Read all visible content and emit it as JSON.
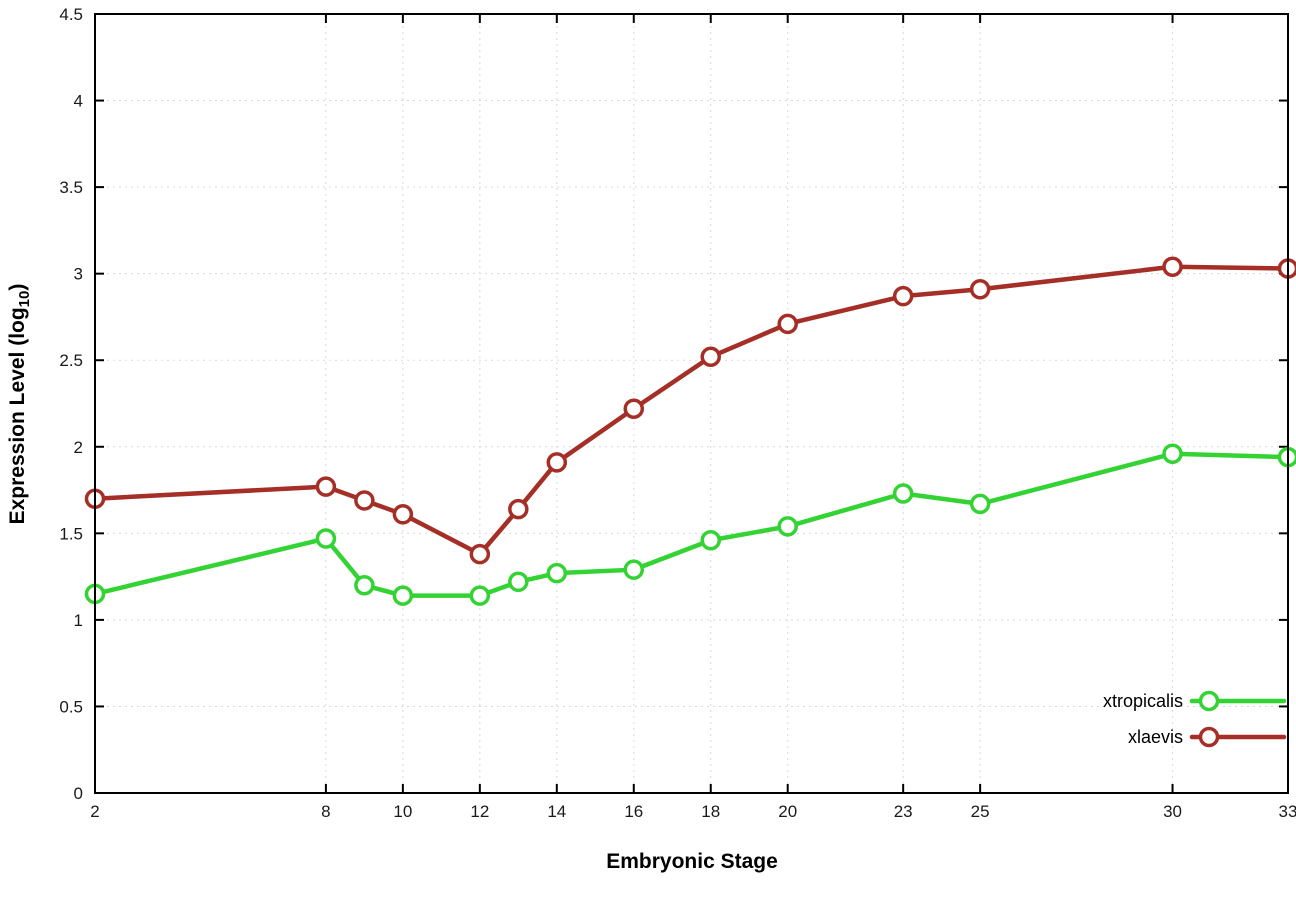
{
  "chart_data": {
    "type": "line",
    "title": "",
    "xlabel": "Embryonic Stage",
    "ylabel": "Expression Level (log10)",
    "ylabel_parts": {
      "prefix": "Expression Level (log",
      "sub": "10",
      "suffix": ")"
    },
    "x": [
      2,
      8,
      9,
      10,
      12,
      13,
      14,
      16,
      18,
      20,
      23,
      25,
      30,
      33
    ],
    "series": [
      {
        "name": "xtropicalis",
        "color": "#33d333",
        "values": [
          1.15,
          1.47,
          1.2,
          1.14,
          1.14,
          1.22,
          1.27,
          1.29,
          1.46,
          1.54,
          1.73,
          1.67,
          1.96,
          1.94
        ]
      },
      {
        "name": "xlaevis",
        "color": "#a52f27",
        "values": [
          1.7,
          1.77,
          1.69,
          1.61,
          1.38,
          1.64,
          1.91,
          2.22,
          2.52,
          2.71,
          2.87,
          2.91,
          3.04,
          3.03
        ]
      }
    ],
    "xlim": [
      2,
      33
    ],
    "ylim": [
      0,
      4.5
    ],
    "xticks": [
      2,
      8,
      10,
      12,
      14,
      16,
      18,
      20,
      23,
      25,
      30,
      33
    ],
    "yticks": [
      0,
      0.5,
      1,
      1.5,
      2,
      2.5,
      3,
      3.5,
      4,
      4.5
    ],
    "ytick_labels": [
      "0",
      "0.5",
      "1",
      "1.5",
      "2",
      "2.5",
      "3",
      "3.5",
      "4",
      "4.5"
    ],
    "grid": true,
    "legend_position": "inside-right-bottom",
    "marker": "open-circle",
    "grid_color": "#d9d9d9",
    "border_color": "#000000"
  }
}
